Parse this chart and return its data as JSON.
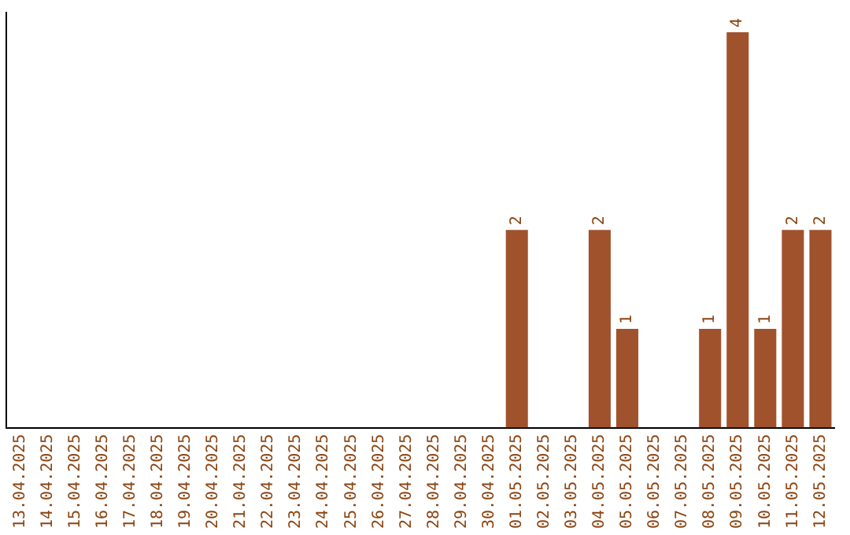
{
  "chart_data": {
    "type": "bar",
    "categories": [
      "13.04.2025",
      "14.04.2025",
      "15.04.2025",
      "16.04.2025",
      "17.04.2025",
      "18.04.2025",
      "19.04.2025",
      "20.04.2025",
      "21.04.2025",
      "22.04.2025",
      "23.04.2025",
      "24.04.2025",
      "25.04.2025",
      "26.04.2025",
      "27.04.2025",
      "28.04.2025",
      "29.04.2025",
      "30.04.2025",
      "01.05.2025",
      "02.05.2025",
      "03.05.2025",
      "04.05.2025",
      "05.05.2025",
      "06.05.2025",
      "07.05.2025",
      "08.05.2025",
      "09.05.2025",
      "10.05.2025",
      "11.05.2025",
      "12.05.2025"
    ],
    "values": [
      null,
      null,
      null,
      null,
      null,
      null,
      null,
      null,
      null,
      null,
      null,
      null,
      null,
      null,
      null,
      null,
      null,
      null,
      2,
      null,
      null,
      2,
      1,
      null,
      null,
      1,
      4,
      1,
      2,
      2
    ],
    "data_labels": true,
    "color": "#a0522d",
    "ylim": [
      0,
      4.2
    ],
    "tick_labels": "x",
    "grid": false,
    "legend": false
  }
}
